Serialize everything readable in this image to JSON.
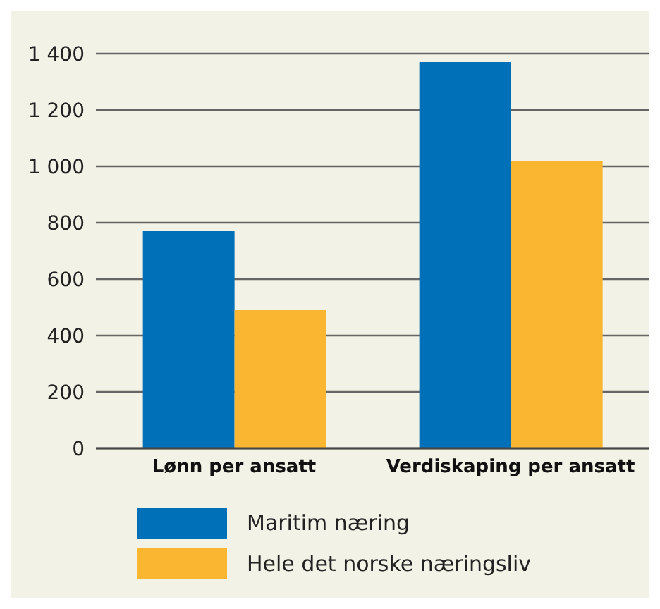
{
  "chart_data": {
    "type": "bar",
    "categories": [
      "Lønn per ansatt",
      "Verdiskaping per ansatt"
    ],
    "series": [
      {
        "name": "Maritim næring",
        "color": "#0070b8",
        "values": [
          770,
          1370
        ]
      },
      {
        "name": "Hele det norske næringsliv",
        "color": "#fbb631",
        "values": [
          490,
          1020
        ]
      }
    ],
    "ylim": [
      0,
      1400
    ],
    "yticks": [
      0,
      200,
      400,
      600,
      800,
      {
        "value": 1000,
        "label": "1 000"
      },
      {
        "value": 1200,
        "label": "1 200"
      },
      {
        "value": 1400,
        "label": "1 400"
      }
    ],
    "grid": "y",
    "legend": "bottom"
  }
}
